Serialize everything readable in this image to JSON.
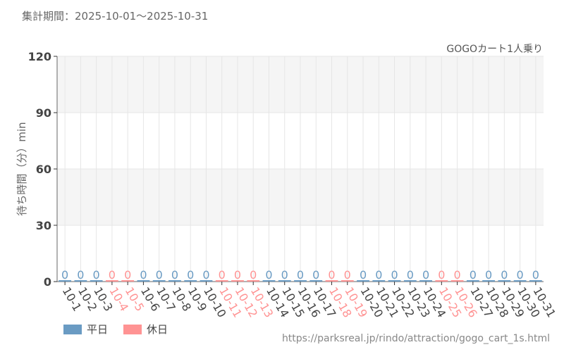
{
  "period_label": "集計期間：2025-10-01～2025-10-31",
  "source_url": "https://parksreal.jp/rindo/attraction/gogo_cart_1s.html",
  "colors": {
    "weekday": "#6a9bc3",
    "holiday": "#ff9393"
  },
  "chart_data": {
    "type": "bar",
    "title": "GOGOカート1人乗り",
    "ylabel": "待ち時間（分）min",
    "xlabel": "",
    "ylim": [
      0,
      120
    ],
    "yticks": [
      0,
      30,
      60,
      90,
      120
    ],
    "grid": true,
    "legend": [
      {
        "name": "平日",
        "color": "#6a9bc3"
      },
      {
        "name": "休日",
        "color": "#ff9393"
      }
    ],
    "legend_position": "bottom-left",
    "categories": [
      "10-1",
      "10-2",
      "10-3",
      "10-4",
      "10-5",
      "10-6",
      "10-7",
      "10-8",
      "10-9",
      "10-10",
      "10-11",
      "10-12",
      "10-13",
      "10-14",
      "10-15",
      "10-16",
      "10-17",
      "10-18",
      "10-19",
      "10-20",
      "10-21",
      "10-22",
      "10-23",
      "10-24",
      "10-25",
      "10-26",
      "10-27",
      "10-28",
      "10-29",
      "10-30",
      "10-31"
    ],
    "holidays": [
      "10-4",
      "10-5",
      "10-11",
      "10-12",
      "10-13",
      "10-18",
      "10-19",
      "10-25",
      "10-26"
    ],
    "values": [
      0,
      0,
      0,
      0,
      0,
      0,
      0,
      0,
      0,
      0,
      0,
      0,
      0,
      0,
      0,
      0,
      0,
      0,
      0,
      0,
      0,
      0,
      0,
      0,
      0,
      0,
      0,
      0,
      0,
      0,
      0
    ]
  }
}
